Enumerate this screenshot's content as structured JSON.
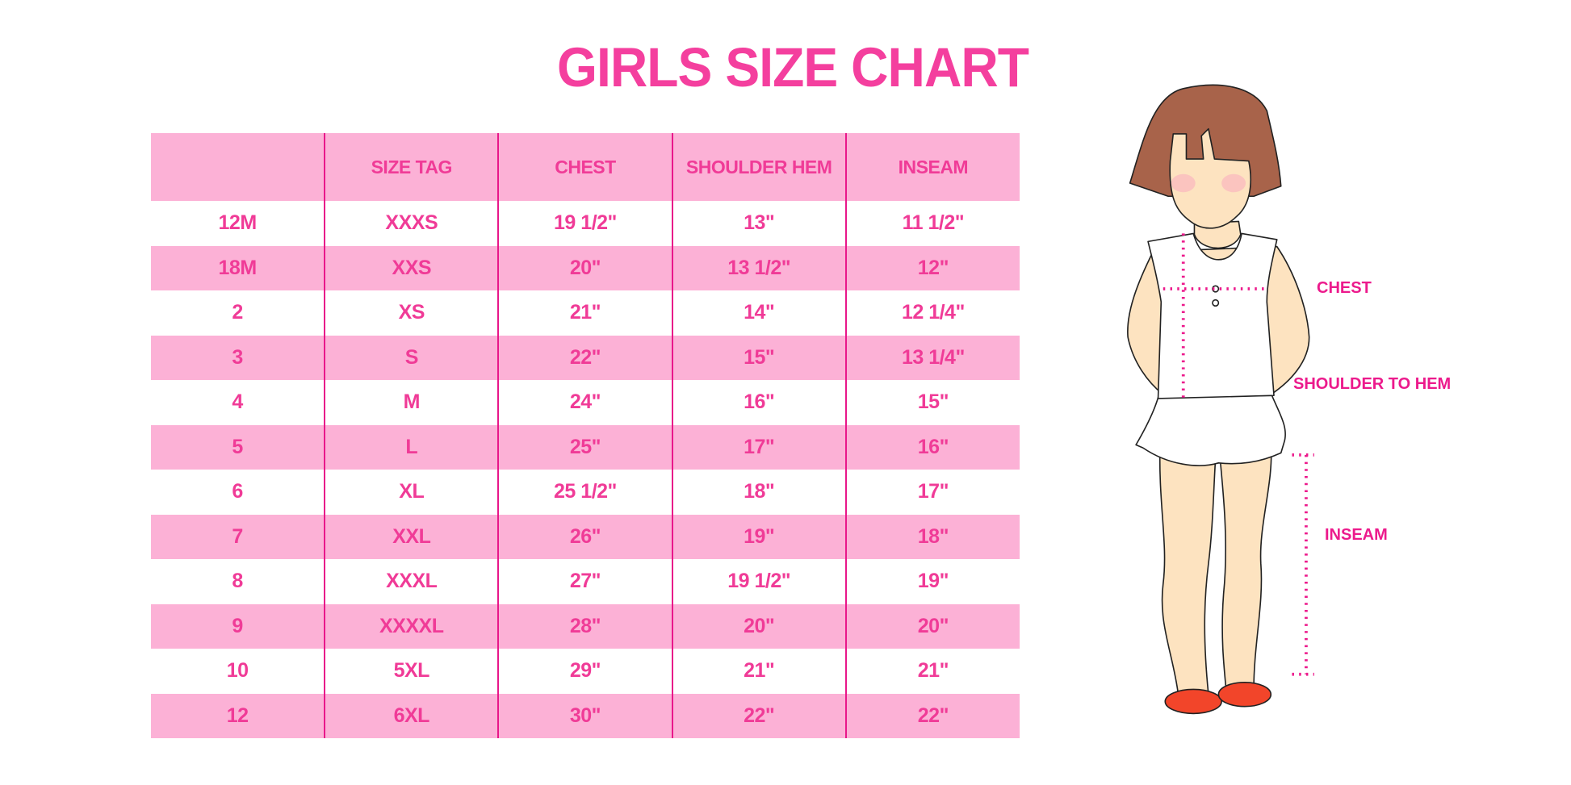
{
  "title": "GIRLS SIZE CHART",
  "table": {
    "headers": [
      "",
      "SIZE TAG",
      "CHEST",
      "SHOULDER HEM",
      "INSEAM"
    ],
    "rows": [
      [
        "12M",
        "XXXS",
        "19 1/2\"",
        "13\"",
        "11 1/2\""
      ],
      [
        "18M",
        "XXS",
        "20\"",
        "13 1/2\"",
        "12\""
      ],
      [
        "2",
        "XS",
        "21\"",
        "14\"",
        "12 1/4\""
      ],
      [
        "3",
        "S",
        "22\"",
        "15\"",
        "13 1/4\""
      ],
      [
        "4",
        "M",
        "24\"",
        "16\"",
        "15\""
      ],
      [
        "5",
        "L",
        "25\"",
        "17\"",
        "16\""
      ],
      [
        "6",
        "XL",
        "25 1/2\"",
        "18\"",
        "17\""
      ],
      [
        "7",
        "XXL",
        "26\"",
        "19\"",
        "18\""
      ],
      [
        "8",
        "XXXL",
        "27\"",
        "19 1/2\"",
        "19\""
      ],
      [
        "9",
        "XXXXL",
        "28\"",
        "20\"",
        "20\""
      ],
      [
        "10",
        "5XL",
        "29\"",
        "21\"",
        "21\""
      ],
      [
        "12",
        "6XL",
        "30\"",
        "22\"",
        "22\""
      ]
    ]
  },
  "figure": {
    "labels": {
      "chest": "CHEST",
      "shoulder_to_hem": "SHOULDER TO HEM",
      "inseam": "INSEAM"
    }
  },
  "colors": {
    "accent": "#f43f9e",
    "row_fill": "#fcb1d6",
    "divider": "#e8178a",
    "measure_line": "#ec1a8c"
  }
}
